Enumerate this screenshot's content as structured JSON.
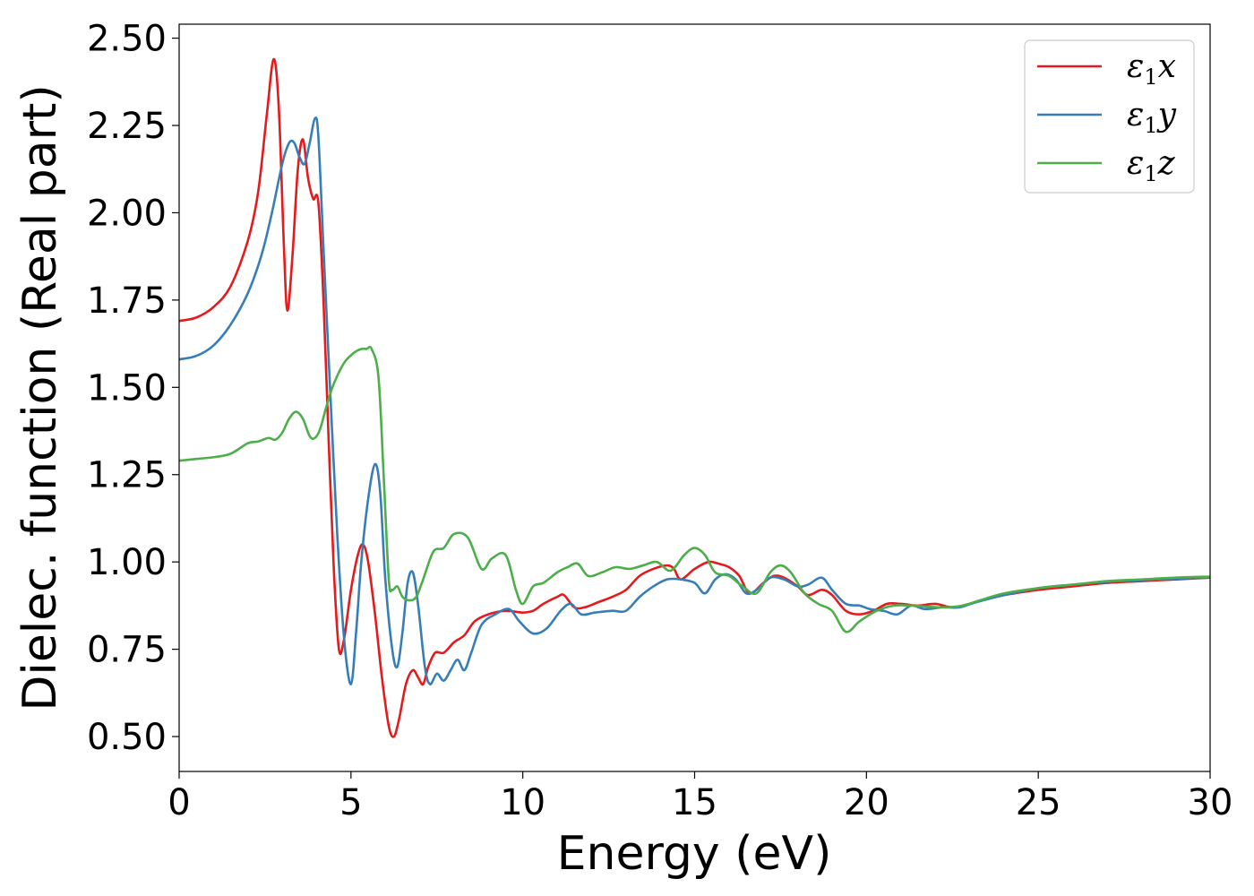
{
  "chart_data": {
    "type": "line",
    "title": "",
    "xlabel": "Energy (eV)",
    "ylabel": "Dielec. function (Real part)",
    "xlim": [
      0,
      30
    ],
    "ylim": [
      0.4,
      2.54
    ],
    "xticks": [
      0,
      5,
      10,
      15,
      20,
      25,
      30
    ],
    "xtick_labels": [
      "0",
      "5",
      "10",
      "15",
      "20",
      "25",
      "30"
    ],
    "yticks": [
      0.5,
      0.75,
      1.0,
      1.25,
      1.5,
      1.75,
      2.0,
      2.25,
      2.5
    ],
    "ytick_labels": [
      "0.50",
      "0.75",
      "1.00",
      "1.25",
      "1.50",
      "1.75",
      "2.00",
      "2.25",
      "2.50"
    ],
    "grid": false,
    "legend": "top-right",
    "series": [
      {
        "name": "ε₁x",
        "legend_main": "ε",
        "legend_sub": "1",
        "legend_suffix": "x",
        "color": "#e41a1c",
        "points": [
          [
            0,
            1.69
          ],
          [
            0.5,
            1.7
          ],
          [
            1.0,
            1.73
          ],
          [
            1.5,
            1.79
          ],
          [
            2.0,
            1.92
          ],
          [
            2.3,
            2.06
          ],
          [
            2.55,
            2.28
          ],
          [
            2.75,
            2.44
          ],
          [
            2.9,
            2.3
          ],
          [
            3.05,
            1.9
          ],
          [
            3.15,
            1.72
          ],
          [
            3.3,
            1.88
          ],
          [
            3.45,
            2.12
          ],
          [
            3.6,
            2.21
          ],
          [
            3.75,
            2.1
          ],
          [
            3.9,
            2.04
          ],
          [
            4.05,
            2.03
          ],
          [
            4.2,
            1.75
          ],
          [
            4.35,
            1.35
          ],
          [
            4.5,
            0.98
          ],
          [
            4.65,
            0.75
          ],
          [
            4.8,
            0.78
          ],
          [
            5.0,
            0.92
          ],
          [
            5.2,
            1.02
          ],
          [
            5.35,
            1.05
          ],
          [
            5.5,
            1.0
          ],
          [
            5.7,
            0.85
          ],
          [
            5.9,
            0.67
          ],
          [
            6.1,
            0.53
          ],
          [
            6.25,
            0.5
          ],
          [
            6.4,
            0.55
          ],
          [
            6.6,
            0.65
          ],
          [
            6.8,
            0.69
          ],
          [
            6.95,
            0.67
          ],
          [
            7.1,
            0.65
          ],
          [
            7.25,
            0.7
          ],
          [
            7.45,
            0.74
          ],
          [
            7.7,
            0.74
          ],
          [
            8.0,
            0.77
          ],
          [
            8.3,
            0.79
          ],
          [
            8.6,
            0.83
          ],
          [
            9.0,
            0.85
          ],
          [
            9.5,
            0.86
          ],
          [
            10.0,
            0.855
          ],
          [
            10.3,
            0.86
          ],
          [
            10.6,
            0.88
          ],
          [
            11.0,
            0.9
          ],
          [
            11.2,
            0.905
          ],
          [
            11.5,
            0.87
          ],
          [
            11.8,
            0.87
          ],
          [
            12.2,
            0.885
          ],
          [
            12.6,
            0.9
          ],
          [
            13.0,
            0.92
          ],
          [
            13.4,
            0.96
          ],
          [
            13.8,
            0.98
          ],
          [
            14.2,
            0.99
          ],
          [
            14.4,
            0.98
          ],
          [
            14.6,
            0.95
          ],
          [
            15.0,
            0.98
          ],
          [
            15.4,
            1.0
          ],
          [
            15.7,
            0.995
          ],
          [
            16.0,
            0.985
          ],
          [
            16.3,
            0.96
          ],
          [
            16.6,
            0.91
          ],
          [
            17.0,
            0.94
          ],
          [
            17.3,
            0.96
          ],
          [
            17.6,
            0.955
          ],
          [
            18.0,
            0.93
          ],
          [
            18.3,
            0.905
          ],
          [
            18.7,
            0.92
          ],
          [
            19.0,
            0.905
          ],
          [
            19.4,
            0.86
          ],
          [
            19.8,
            0.85
          ],
          [
            20.2,
            0.86
          ],
          [
            20.6,
            0.88
          ],
          [
            21.0,
            0.88
          ],
          [
            21.5,
            0.875
          ],
          [
            22.0,
            0.88
          ],
          [
            22.5,
            0.87
          ],
          [
            23.0,
            0.88
          ],
          [
            23.5,
            0.895
          ],
          [
            24.0,
            0.905
          ],
          [
            25.0,
            0.92
          ],
          [
            26.0,
            0.93
          ],
          [
            27.0,
            0.94
          ],
          [
            28.0,
            0.945
          ],
          [
            29.0,
            0.95
          ],
          [
            30.0,
            0.955
          ]
        ]
      },
      {
        "name": "ε₁y",
        "legend_main": "ε",
        "legend_sub": "1",
        "legend_suffix": "y",
        "color": "#377eb8",
        "points": [
          [
            0,
            1.58
          ],
          [
            0.5,
            1.59
          ],
          [
            1.0,
            1.62
          ],
          [
            1.5,
            1.68
          ],
          [
            2.0,
            1.77
          ],
          [
            2.4,
            1.88
          ],
          [
            2.7,
            2.0
          ],
          [
            3.0,
            2.14
          ],
          [
            3.2,
            2.2
          ],
          [
            3.35,
            2.2
          ],
          [
            3.5,
            2.16
          ],
          [
            3.65,
            2.14
          ],
          [
            3.8,
            2.2
          ],
          [
            3.95,
            2.27
          ],
          [
            4.05,
            2.22
          ],
          [
            4.2,
            1.9
          ],
          [
            4.4,
            1.48
          ],
          [
            4.6,
            1.08
          ],
          [
            4.8,
            0.78
          ],
          [
            5.0,
            0.65
          ],
          [
            5.15,
            0.8
          ],
          [
            5.3,
            1.0
          ],
          [
            5.5,
            1.18
          ],
          [
            5.7,
            1.28
          ],
          [
            5.85,
            1.2
          ],
          [
            6.0,
            0.95
          ],
          [
            6.2,
            0.75
          ],
          [
            6.35,
            0.7
          ],
          [
            6.5,
            0.8
          ],
          [
            6.65,
            0.94
          ],
          [
            6.8,
            0.97
          ],
          [
            6.95,
            0.88
          ],
          [
            7.15,
            0.7
          ],
          [
            7.3,
            0.65
          ],
          [
            7.5,
            0.68
          ],
          [
            7.7,
            0.66
          ],
          [
            7.9,
            0.69
          ],
          [
            8.1,
            0.72
          ],
          [
            8.3,
            0.69
          ],
          [
            8.5,
            0.74
          ],
          [
            8.8,
            0.82
          ],
          [
            9.2,
            0.85
          ],
          [
            9.6,
            0.865
          ],
          [
            9.9,
            0.83
          ],
          [
            10.3,
            0.795
          ],
          [
            10.7,
            0.81
          ],
          [
            11.1,
            0.86
          ],
          [
            11.4,
            0.88
          ],
          [
            11.7,
            0.85
          ],
          [
            12.1,
            0.855
          ],
          [
            12.6,
            0.86
          ],
          [
            13.0,
            0.86
          ],
          [
            13.4,
            0.9
          ],
          [
            13.8,
            0.93
          ],
          [
            14.2,
            0.95
          ],
          [
            14.6,
            0.95
          ],
          [
            15.0,
            0.94
          ],
          [
            15.3,
            0.91
          ],
          [
            15.6,
            0.95
          ],
          [
            15.9,
            0.965
          ],
          [
            16.2,
            0.95
          ],
          [
            16.5,
            0.91
          ],
          [
            16.8,
            0.92
          ],
          [
            17.2,
            0.955
          ],
          [
            17.6,
            0.95
          ],
          [
            18.0,
            0.93
          ],
          [
            18.3,
            0.935
          ],
          [
            18.7,
            0.955
          ],
          [
            19.0,
            0.92
          ],
          [
            19.4,
            0.88
          ],
          [
            19.8,
            0.875
          ],
          [
            20.1,
            0.865
          ],
          [
            20.5,
            0.86
          ],
          [
            20.9,
            0.85
          ],
          [
            21.3,
            0.875
          ],
          [
            21.7,
            0.865
          ],
          [
            22.2,
            0.87
          ],
          [
            22.7,
            0.87
          ],
          [
            23.2,
            0.885
          ],
          [
            24.0,
            0.905
          ],
          [
            25.0,
            0.925
          ],
          [
            26.0,
            0.935
          ],
          [
            27.0,
            0.943
          ],
          [
            28.0,
            0.948
          ],
          [
            29.0,
            0.952
          ],
          [
            30.0,
            0.955
          ]
        ]
      },
      {
        "name": "ε₁z",
        "legend_main": "ε",
        "legend_sub": "1",
        "legend_suffix": "z",
        "color": "#4daf4a",
        "points": [
          [
            0,
            1.29
          ],
          [
            0.5,
            1.295
          ],
          [
            1.0,
            1.3
          ],
          [
            1.5,
            1.31
          ],
          [
            2.0,
            1.34
          ],
          [
            2.3,
            1.345
          ],
          [
            2.6,
            1.355
          ],
          [
            2.8,
            1.35
          ],
          [
            3.0,
            1.37
          ],
          [
            3.2,
            1.41
          ],
          [
            3.4,
            1.43
          ],
          [
            3.6,
            1.41
          ],
          [
            3.8,
            1.36
          ],
          [
            3.95,
            1.355
          ],
          [
            4.1,
            1.38
          ],
          [
            4.3,
            1.45
          ],
          [
            4.5,
            1.51
          ],
          [
            4.8,
            1.57
          ],
          [
            5.1,
            1.6
          ],
          [
            5.3,
            1.61
          ],
          [
            5.45,
            1.61
          ],
          [
            5.6,
            1.61
          ],
          [
            5.8,
            1.53
          ],
          [
            5.95,
            1.25
          ],
          [
            6.1,
            0.95
          ],
          [
            6.2,
            0.92
          ],
          [
            6.35,
            0.93
          ],
          [
            6.5,
            0.9
          ],
          [
            6.7,
            0.89
          ],
          [
            6.9,
            0.9
          ],
          [
            7.1,
            0.95
          ],
          [
            7.4,
            1.03
          ],
          [
            7.7,
            1.04
          ],
          [
            8.0,
            1.08
          ],
          [
            8.4,
            1.07
          ],
          [
            8.8,
            0.98
          ],
          [
            9.1,
            1.01
          ],
          [
            9.5,
            1.02
          ],
          [
            9.8,
            0.92
          ],
          [
            10.0,
            0.88
          ],
          [
            10.3,
            0.93
          ],
          [
            10.6,
            0.94
          ],
          [
            11.0,
            0.97
          ],
          [
            11.3,
            0.985
          ],
          [
            11.6,
            0.995
          ],
          [
            11.9,
            0.96
          ],
          [
            12.3,
            0.97
          ],
          [
            12.7,
            0.985
          ],
          [
            13.1,
            0.98
          ],
          [
            13.5,
            0.99
          ],
          [
            13.9,
            1.0
          ],
          [
            14.3,
            0.975
          ],
          [
            14.7,
            1.02
          ],
          [
            15.0,
            1.04
          ],
          [
            15.3,
            1.02
          ],
          [
            15.6,
            0.97
          ],
          [
            16.0,
            0.96
          ],
          [
            16.4,
            0.93
          ],
          [
            16.8,
            0.91
          ],
          [
            17.2,
            0.97
          ],
          [
            17.5,
            0.99
          ],
          [
            17.8,
            0.97
          ],
          [
            18.2,
            0.91
          ],
          [
            18.6,
            0.88
          ],
          [
            19.0,
            0.86
          ],
          [
            19.4,
            0.8
          ],
          [
            19.8,
            0.83
          ],
          [
            20.3,
            0.86
          ],
          [
            20.8,
            0.875
          ],
          [
            21.3,
            0.875
          ],
          [
            21.8,
            0.872
          ],
          [
            22.3,
            0.87
          ],
          [
            22.8,
            0.875
          ],
          [
            23.3,
            0.89
          ],
          [
            24.0,
            0.91
          ],
          [
            25.0,
            0.925
          ],
          [
            26.0,
            0.935
          ],
          [
            27.0,
            0.945
          ],
          [
            28.0,
            0.95
          ],
          [
            29.0,
            0.955
          ],
          [
            30.0,
            0.958
          ]
        ]
      }
    ]
  }
}
